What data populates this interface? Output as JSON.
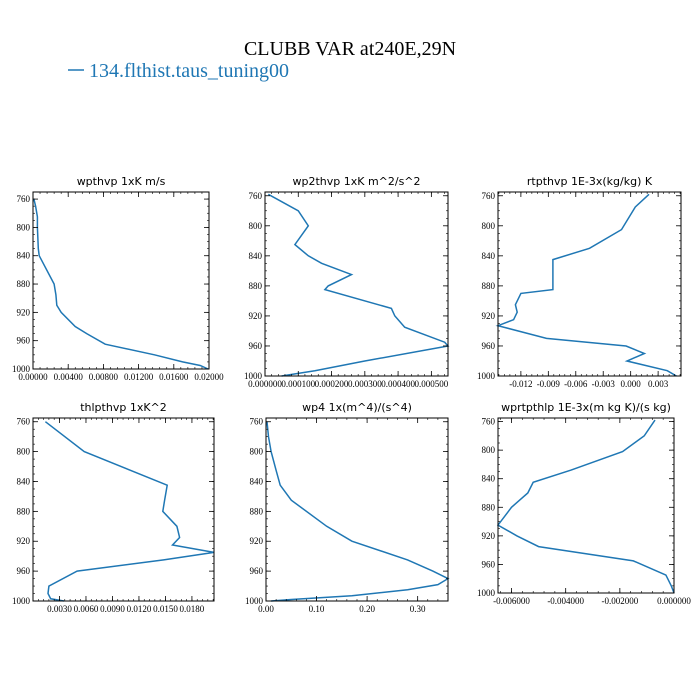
{
  "title": "CLUBB VAR at240E,29N",
  "legend": {
    "label": "134.flthist.taus_tuning00",
    "color": "#1f77b4"
  },
  "chart_data": [
    {
      "type": "line",
      "title": "wpthvp  1xK m/s",
      "xlim": [
        0,
        0.02
      ],
      "ylim": [
        1000,
        750
      ],
      "xticks": [
        "0.00000",
        "0.00400",
        "0.00800",
        "0.01200",
        "0.01600",
        "0.02000"
      ],
      "xtick_values": [
        0,
        0.004,
        0.008,
        0.012,
        0.016,
        0.02
      ],
      "yticks": [
        "760",
        "800",
        "840",
        "880",
        "920",
        "960",
        "1000"
      ],
      "ytick_values": [
        760,
        800,
        840,
        880,
        920,
        960,
        1000
      ],
      "series": [
        {
          "x": [
            0.0001,
            0.0003,
            0.0005,
            0.0005,
            0.0006,
            0.0007,
            0.0024,
            0.0026,
            0.0027,
            0.0032,
            0.0048,
            0.0061,
            0.0082,
            0.0138,
            0.017,
            0.019,
            0.0199
          ],
          "y": [
            760,
            770,
            785,
            800,
            830,
            840,
            880,
            895,
            910,
            920,
            940,
            950,
            965,
            980,
            990,
            995,
            1000
          ]
        }
      ]
    },
    {
      "type": "line",
      "title": "wp2thvp  1xK m^2/s^2",
      "xlim": [
        0,
        0.00055
      ],
      "ylim": [
        1000,
        755
      ],
      "xticks": [
        "0.000000",
        "0.000100",
        "0.000200",
        "0.000300",
        "0.000400",
        "0.000500"
      ],
      "xtick_values": [
        0,
        0.0001,
        0.0002,
        0.0003,
        0.0004,
        0.0005
      ],
      "yticks": [
        "760",
        "800",
        "840",
        "880",
        "920",
        "960",
        "1000"
      ],
      "ytick_values": [
        760,
        800,
        840,
        880,
        920,
        960,
        1000
      ],
      "series": [
        {
          "x": [
            1e-05,
            0.0001,
            0.00013,
            9e-05,
            0.00013,
            0.00017,
            0.00026,
            0.00019,
            0.00018,
            0.00038,
            0.00039,
            0.00042,
            0.00054,
            0.00055,
            0.0003,
            0.00015,
            5e-05
          ],
          "y": [
            758,
            780,
            800,
            825,
            840,
            850,
            865,
            880,
            885,
            910,
            920,
            935,
            955,
            960,
            980,
            993,
            1000
          ]
        }
      ]
    },
    {
      "type": "line",
      "title": "rtpthvp  1E-3x(kg/kg) K",
      "xlim": [
        -0.0145,
        0.0055
      ],
      "ylim": [
        1000,
        755
      ],
      "xticks": [
        "-0.012",
        "-0.009",
        "-0.006",
        "-0.003",
        "0.000",
        "0.003"
      ],
      "xtick_values": [
        -0.012,
        -0.009,
        -0.006,
        -0.003,
        0,
        0.003
      ],
      "yticks": [
        "760",
        "800",
        "840",
        "880",
        "920",
        "960",
        "1000"
      ],
      "ytick_values": [
        760,
        800,
        840,
        880,
        920,
        960,
        1000
      ],
      "series": [
        {
          "x": [
            0.002,
            0.0005,
            -0.001,
            -0.0045,
            -0.0085,
            -0.0085,
            -0.0085,
            -0.012,
            -0.0126,
            -0.0124,
            -0.0128,
            -0.0145,
            -0.0092,
            -0.0005,
            0.0015,
            -0.0004,
            0.004,
            0.005
          ],
          "y": [
            758,
            775,
            805,
            830,
            845,
            865,
            885,
            890,
            905,
            915,
            925,
            933,
            950,
            960,
            970,
            980,
            993,
            1000
          ]
        }
      ]
    },
    {
      "type": "line",
      "title": "thlpthvp  1xK^2",
      "xlim": [
        0,
        0.0205
      ],
      "ylim": [
        1000,
        755
      ],
      "xticks": [
        "0.0030",
        "0.0060",
        "0.0090",
        "0.0120",
        "0.0150",
        "0.0180"
      ],
      "xtick_values": [
        0.003,
        0.006,
        0.009,
        0.012,
        0.015,
        0.018
      ],
      "yticks": [
        "760",
        "800",
        "840",
        "880",
        "920",
        "960",
        "1000"
      ],
      "ytick_values": [
        760,
        800,
        840,
        880,
        920,
        960,
        1000
      ],
      "series": [
        {
          "x": [
            0.0014,
            0.0058,
            0.0152,
            0.0149,
            0.0147,
            0.0163,
            0.0166,
            0.0158,
            0.0205,
            0.0148,
            0.005,
            0.0018,
            0.0017,
            0.002,
            0.0035
          ],
          "y": [
            760,
            800,
            845,
            865,
            880,
            900,
            915,
            925,
            935,
            945,
            960,
            980,
            990,
            997,
            1000
          ]
        }
      ]
    },
    {
      "type": "line",
      "title": "wp4  1x(m^4)/(s^4)",
      "xlim": [
        0,
        0.36
      ],
      "ylim": [
        1000,
        755
      ],
      "xticks": [
        "0.00",
        "0.10",
        "0.20",
        "0.30"
      ],
      "xtick_values": [
        0,
        0.1,
        0.2,
        0.3
      ],
      "yticks": [
        "760",
        "800",
        "840",
        "880",
        "920",
        "960",
        "1000"
      ],
      "ytick_values": [
        760,
        800,
        840,
        880,
        920,
        960,
        1000
      ],
      "series": [
        {
          "x": [
            0.002,
            0.005,
            0.01,
            0.02,
            0.028,
            0.05,
            0.12,
            0.17,
            0.28,
            0.33,
            0.36,
            0.34,
            0.28,
            0.17,
            0.05,
            0.01
          ],
          "y": [
            760,
            780,
            800,
            825,
            845,
            865,
            900,
            920,
            945,
            960,
            970,
            978,
            985,
            993,
            998,
            1000
          ]
        }
      ]
    },
    {
      "type": "line",
      "title": "wprtpthlp  1E-3x(m kg K)/(s kg)",
      "xlim": [
        -0.0065,
        0.0
      ],
      "ylim": [
        1000,
        755
      ],
      "xticks": [
        "-0.006000",
        "-0.004000",
        "-0.002000",
        "0.000000"
      ],
      "xtick_values": [
        -0.006,
        -0.004,
        -0.002,
        0
      ],
      "yticks": [
        "760",
        "800",
        "840",
        "880",
        "920",
        "960",
        "1000"
      ],
      "ytick_values": [
        760,
        800,
        840,
        880,
        920,
        960,
        1000
      ],
      "series": [
        {
          "x": [
            -0.0007,
            -0.0011,
            -0.0019,
            -0.0038,
            -0.0052,
            -0.0054,
            -0.0057,
            -0.006,
            -0.0065,
            -0.0058,
            -0.005,
            -0.0015,
            -0.0003,
            -0.0001,
            0.0
          ],
          "y": [
            758,
            780,
            802,
            828,
            845,
            860,
            870,
            880,
            905,
            920,
            935,
            955,
            975,
            990,
            1000
          ]
        }
      ]
    }
  ]
}
